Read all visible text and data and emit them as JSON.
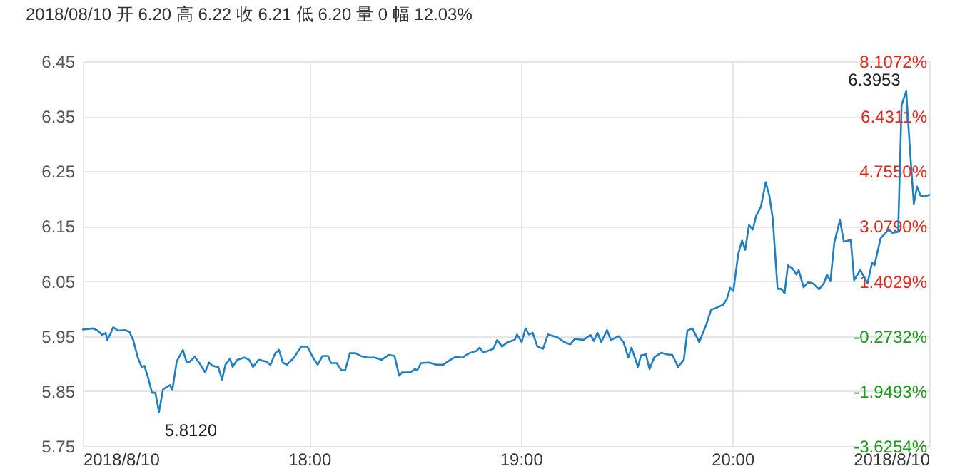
{
  "chart_data": {
    "type": "line",
    "title": "2018/08/10 开 6.20 高 6.22 收 6.21 低 6.20 量 0 幅 12.03%",
    "x": [
      16.93,
      16.978,
      17.0,
      17.022,
      17.038,
      17.045,
      17.063,
      17.074,
      17.096,
      17.128,
      17.15,
      17.168,
      17.19,
      17.208,
      17.221,
      17.239,
      17.257,
      17.273,
      17.29,
      17.309,
      17.324,
      17.342,
      17.353,
      17.374,
      17.403,
      17.421,
      17.436,
      17.459,
      17.481,
      17.508,
      17.526,
      17.544,
      17.57,
      17.588,
      17.604,
      17.626,
      17.638,
      17.66,
      17.694,
      17.716,
      17.734,
      17.761,
      17.794,
      17.817,
      17.839,
      17.857,
      17.875,
      17.895,
      17.928,
      17.962,
      17.991,
      18.018,
      18.04,
      18.063,
      18.089,
      18.103,
      18.13,
      18.152,
      18.17,
      18.192,
      18.219,
      18.242,
      18.275,
      18.309,
      18.342,
      18.376,
      18.403,
      18.425,
      18.438,
      18.477,
      18.499,
      18.51,
      18.528,
      18.566,
      18.6,
      18.633,
      18.667,
      18.689,
      18.723,
      18.756,
      18.79,
      18.805,
      18.823,
      18.87,
      18.888,
      18.911,
      18.937,
      18.971,
      18.982,
      19.004,
      19.022,
      19.038,
      19.056,
      19.078,
      19.105,
      19.128,
      19.172,
      19.206,
      19.233,
      19.255,
      19.295,
      19.329,
      19.345,
      19.362,
      19.38,
      19.407,
      19.425,
      19.463,
      19.485,
      19.508,
      19.523,
      19.553,
      19.568,
      19.591,
      19.608,
      19.631,
      19.664,
      19.687,
      19.716,
      19.743,
      19.77,
      19.787,
      19.81,
      19.843,
      19.877,
      19.899,
      19.926,
      19.955,
      19.973,
      19.989,
      20.004,
      20.027,
      20.045,
      20.06,
      20.078,
      20.096,
      20.112,
      20.134,
      20.157,
      20.174,
      20.19,
      20.213,
      20.231,
      20.246,
      20.262,
      20.284,
      20.302,
      20.313,
      20.336,
      20.358,
      20.38,
      20.409,
      20.432,
      20.447,
      20.463,
      20.481,
      20.508,
      20.526,
      20.559,
      20.575,
      20.604,
      20.638,
      20.66,
      20.671,
      20.7,
      20.738,
      20.756,
      20.783,
      20.799,
      20.821,
      20.839,
      20.857,
      20.872,
      20.888,
      20.906,
      20.93
    ],
    "series": [
      {
        "color": "#1f7fc1",
        "values": [
          5.962,
          5.964,
          5.96,
          5.952,
          5.956,
          5.943,
          5.956,
          5.966,
          5.96,
          5.961,
          5.958,
          5.943,
          5.911,
          5.894,
          5.896,
          5.874,
          5.847,
          5.847,
          5.812,
          5.853,
          5.857,
          5.861,
          5.852,
          5.904,
          5.925,
          5.902,
          5.904,
          5.912,
          5.901,
          5.884,
          5.902,
          5.896,
          5.894,
          5.871,
          5.898,
          5.909,
          5.894,
          5.907,
          5.911,
          5.907,
          5.894,
          5.907,
          5.904,
          5.898,
          5.919,
          5.925,
          5.902,
          5.898,
          5.911,
          5.931,
          5.931,
          5.911,
          5.898,
          5.914,
          5.914,
          5.901,
          5.901,
          5.888,
          5.888,
          5.919,
          5.919,
          5.914,
          5.911,
          5.911,
          5.907,
          5.916,
          5.914,
          5.878,
          5.884,
          5.884,
          5.89,
          5.888,
          5.901,
          5.902,
          5.898,
          5.898,
          5.907,
          5.912,
          5.911,
          5.919,
          5.923,
          5.929,
          5.92,
          5.927,
          5.943,
          5.931,
          5.939,
          5.943,
          5.953,
          5.939,
          5.964,
          5.953,
          5.956,
          5.931,
          5.927,
          5.953,
          5.948,
          5.939,
          5.935,
          5.945,
          5.943,
          5.952,
          5.941,
          5.956,
          5.939,
          5.961,
          5.943,
          5.95,
          5.939,
          5.911,
          5.929,
          5.894,
          5.915,
          5.917,
          5.89,
          5.912,
          5.92,
          5.917,
          5.916,
          5.894,
          5.907,
          5.96,
          5.964,
          5.939,
          5.972,
          5.998,
          6.002,
          6.007,
          6.017,
          6.038,
          6.032,
          6.099,
          6.124,
          6.107,
          6.152,
          6.144,
          6.169,
          6.185,
          6.23,
          6.206,
          6.165,
          6.036,
          6.036,
          6.028,
          6.079,
          6.073,
          6.062,
          6.07,
          6.039,
          6.048,
          6.046,
          6.035,
          6.046,
          6.062,
          6.05,
          6.12,
          6.161,
          6.122,
          6.125,
          6.052,
          6.07,
          6.046,
          6.084,
          6.079,
          6.128,
          6.144,
          6.138,
          6.14,
          6.37,
          6.3953,
          6.288,
          6.191,
          6.222,
          6.206,
          6.204,
          6.207
        ]
      }
    ],
    "xlim": [
      16.93,
      20.93
    ],
    "xticks": [
      {
        "value": 16.93,
        "label": "2018/8/10"
      },
      {
        "value": 18,
        "label": "18:00"
      },
      {
        "value": 19,
        "label": "19:00"
      },
      {
        "value": 20,
        "label": "20:00"
      },
      {
        "value": 20.93,
        "label": "2018/8/10"
      }
    ],
    "ylim": [
      5.75,
      6.45
    ],
    "yticks": [
      5.75,
      5.85,
      5.95,
      6.05,
      6.15,
      6.25,
      6.35,
      6.45
    ],
    "y2lim": [
      -3.6254,
      8.1072
    ],
    "y2ticks": [
      {
        "value": -3.6254,
        "label": "-3.6254%"
      },
      {
        "value": -1.9493,
        "label": "-1.9493%"
      },
      {
        "value": -0.2732,
        "label": "-0.2732%"
      },
      {
        "value": 1.4029,
        "label": "1.4029%"
      },
      {
        "value": 3.079,
        "label": "3.0790%"
      },
      {
        "value": 4.755,
        "label": "4.7550%"
      },
      {
        "value": 6.4311,
        "label": "6.4311%"
      },
      {
        "value": 8.1072,
        "label": "8.1072%"
      }
    ],
    "annotations": [
      {
        "text": "6.3953",
        "x": 20.821,
        "y": 6.3953
      },
      {
        "text": "5.8120",
        "x": 17.29,
        "y": 5.812
      }
    ],
    "grid": true,
    "marker": "none",
    "line_style": "solid"
  }
}
